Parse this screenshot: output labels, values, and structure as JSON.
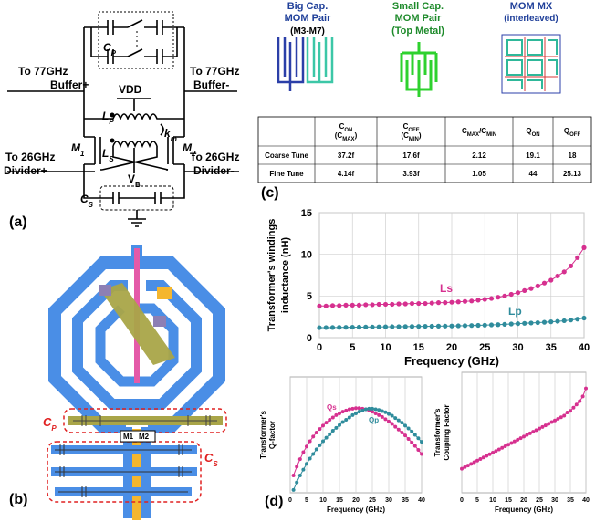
{
  "panel_labels": {
    "a": "(a)",
    "b": "(b)",
    "c": "(c)",
    "d": "(d)"
  },
  "schematic": {
    "cp": [
      "C",
      "P"
    ],
    "buffer_plus": [
      "To 77GHz",
      "Buffer+"
    ],
    "buffer_minus": [
      "To 77GHz",
      "Buffer-"
    ],
    "vdd": "VDD",
    "lp": [
      "L",
      "P"
    ],
    "km": [
      "k",
      "m"
    ],
    "ls": [
      "L",
      "S"
    ],
    "m1": [
      "M",
      "1"
    ],
    "m2": [
      "M",
      "2"
    ],
    "divider_plus": [
      "To 26GHz",
      "Divider+"
    ],
    "divider_minus": [
      "To 26GHz",
      "Divider-"
    ],
    "vb": [
      "V",
      "B"
    ],
    "cs": [
      "C",
      "S"
    ]
  },
  "layout": {
    "cp": [
      "C",
      "P"
    ],
    "cs": [
      "C",
      "S"
    ],
    "m1": "M1",
    "m2": "M2"
  },
  "mom": {
    "big": [
      "Big Cap.",
      "MOM Pair",
      "(M3-M7)"
    ],
    "small": [
      "Small Cap.",
      "MOM Pair",
      "(Top Metal)"
    ],
    "mx": [
      "MOM MX",
      "(interleaved)"
    ]
  },
  "table": {
    "columns": [
      [
        [
          "C",
          "ON"
        ],
        [
          "(C",
          "MAX",
          ")"
        ]
      ],
      [
        [
          "C",
          "OFF"
        ],
        [
          "(C",
          "MIN",
          ")"
        ]
      ],
      [
        [
          "C",
          "MAX",
          "/C",
          "MIN"
        ]
      ],
      [
        [
          "Q",
          "ON"
        ]
      ],
      [
        [
          "Q",
          "OFF"
        ]
      ]
    ],
    "rows": [
      {
        "label": "Coarse Tune",
        "cells": [
          "37.2f",
          "17.6f",
          "2.12",
          "19.1",
          "18"
        ]
      },
      {
        "label": "Fine Tune",
        "cells": [
          "4.14f",
          "3.93f",
          "1.05",
          "44",
          "25.13"
        ]
      }
    ]
  },
  "chart_data": [
    {
      "type": "line",
      "x_label": "Frequency (GHz)",
      "y_label": [
        "Transformer's windings",
        "inductance (nH)"
      ],
      "x": [
        0,
        1,
        2,
        3,
        4,
        5,
        6,
        7,
        8,
        9,
        10,
        11,
        12,
        13,
        14,
        15,
        16,
        17,
        18,
        19,
        20,
        21,
        22,
        23,
        24,
        25,
        26,
        27,
        28,
        29,
        30,
        31,
        32,
        33,
        34,
        35,
        36,
        37,
        38,
        39,
        40
      ],
      "xlim": [
        0,
        40
      ],
      "xticks": [
        0,
        5,
        10,
        15,
        20,
        25,
        30,
        35,
        40
      ],
      "ylim": [
        0,
        15
      ],
      "yticks": [
        0,
        5,
        10,
        15
      ],
      "grid": true,
      "series": [
        {
          "name": "Ls",
          "color": "#d6308f",
          "values": [
            3.8,
            3.8,
            3.85,
            3.85,
            3.9,
            3.9,
            3.9,
            3.95,
            3.95,
            4.0,
            4.0,
            4.0,
            4.05,
            4.05,
            4.1,
            4.1,
            4.1,
            4.15,
            4.2,
            4.2,
            4.25,
            4.3,
            4.35,
            4.4,
            4.5,
            4.6,
            4.7,
            4.85,
            5.0,
            5.2,
            5.4,
            5.65,
            5.9,
            6.2,
            6.55,
            6.9,
            7.4,
            7.9,
            8.6,
            9.6,
            10.8
          ]
        },
        {
          "name": "Lp",
          "color": "#2f8c9c",
          "values": [
            1.2,
            1.21,
            1.22,
            1.23,
            1.24,
            1.25,
            1.26,
            1.27,
            1.28,
            1.29,
            1.3,
            1.31,
            1.32,
            1.33,
            1.34,
            1.35,
            1.36,
            1.37,
            1.38,
            1.39,
            1.4,
            1.42,
            1.44,
            1.46,
            1.48,
            1.5,
            1.53,
            1.56,
            1.6,
            1.64,
            1.68,
            1.72,
            1.76,
            1.8,
            1.85,
            1.9,
            1.96,
            2.03,
            2.12,
            2.22,
            2.35
          ]
        }
      ]
    },
    {
      "type": "line",
      "x_label": "Frequency (GHz)",
      "y_label": [
        "Transformer's",
        "Q-factor"
      ],
      "x": [
        1,
        2,
        3,
        4,
        5,
        6,
        7,
        8,
        9,
        10,
        11,
        12,
        13,
        14,
        15,
        16,
        17,
        18,
        19,
        20,
        21,
        22,
        23,
        24,
        25,
        26,
        27,
        28,
        29,
        30,
        31,
        32,
        33,
        34,
        35,
        36,
        37,
        38,
        39,
        40
      ],
      "xlim": [
        0,
        40
      ],
      "xticks": [
        0,
        5,
        10,
        15,
        20,
        25,
        30,
        35,
        40
      ],
      "ylim": [
        0,
        20
      ],
      "grid": true,
      "series": [
        {
          "name": "Qs",
          "color": "#d6308f",
          "values": [
            3,
            4.5,
            5.8,
            7,
            8,
            8.9,
            9.7,
            10.4,
            11,
            11.6,
            12.1,
            12.6,
            13,
            13.4,
            13.7,
            14,
            14.2,
            14.4,
            14.5,
            14.6,
            14.6,
            14.5,
            14.4,
            14.2,
            14,
            13.7,
            13.4,
            13.1,
            12.7,
            12.3,
            11.9,
            11.4,
            10.9,
            10.4,
            9.9,
            9.3,
            8.7,
            8.1,
            7.4,
            6.7
          ]
        },
        {
          "name": "Qp",
          "color": "#2f8c9c",
          "values": [
            0.5,
            1.8,
            3,
            4,
            5,
            5.9,
            6.7,
            7.5,
            8.2,
            8.9,
            9.5,
            10.1,
            10.7,
            11.2,
            11.7,
            12.2,
            12.6,
            13,
            13.4,
            13.7,
            14,
            14.2,
            14.4,
            14.5,
            14.5,
            14.4,
            14.3,
            14.1,
            13.9,
            13.6,
            13.3,
            12.9,
            12.5,
            12.1,
            11.6,
            11.1,
            10.6,
            10,
            9.4,
            8.8
          ]
        }
      ]
    },
    {
      "type": "line",
      "x_label": "Frequency (GHz)",
      "y_label": [
        "Transformer's",
        "Coupling Factor"
      ],
      "x": [
        0,
        1,
        2,
        3,
        4,
        5,
        6,
        7,
        8,
        9,
        10,
        11,
        12,
        13,
        14,
        15,
        16,
        17,
        18,
        19,
        20,
        21,
        22,
        23,
        24,
        25,
        26,
        27,
        28,
        29,
        30,
        31,
        32,
        33,
        34,
        35,
        36,
        37,
        38,
        39,
        40
      ],
      "xlim": [
        0,
        40
      ],
      "xticks": [
        0,
        5,
        10,
        15,
        20,
        25,
        30,
        35,
        40
      ],
      "ylim": [
        0.2,
        0.95
      ],
      "grid": true,
      "series": [
        {
          "color": "#d6308f",
          "values": [
            0.35,
            0.36,
            0.37,
            0.38,
            0.39,
            0.4,
            0.41,
            0.42,
            0.43,
            0.44,
            0.45,
            0.46,
            0.47,
            0.48,
            0.49,
            0.5,
            0.51,
            0.52,
            0.53,
            0.54,
            0.55,
            0.56,
            0.57,
            0.58,
            0.59,
            0.6,
            0.61,
            0.62,
            0.63,
            0.64,
            0.65,
            0.66,
            0.67,
            0.68,
            0.7,
            0.71,
            0.73,
            0.75,
            0.77,
            0.8,
            0.85
          ]
        }
      ]
    }
  ]
}
